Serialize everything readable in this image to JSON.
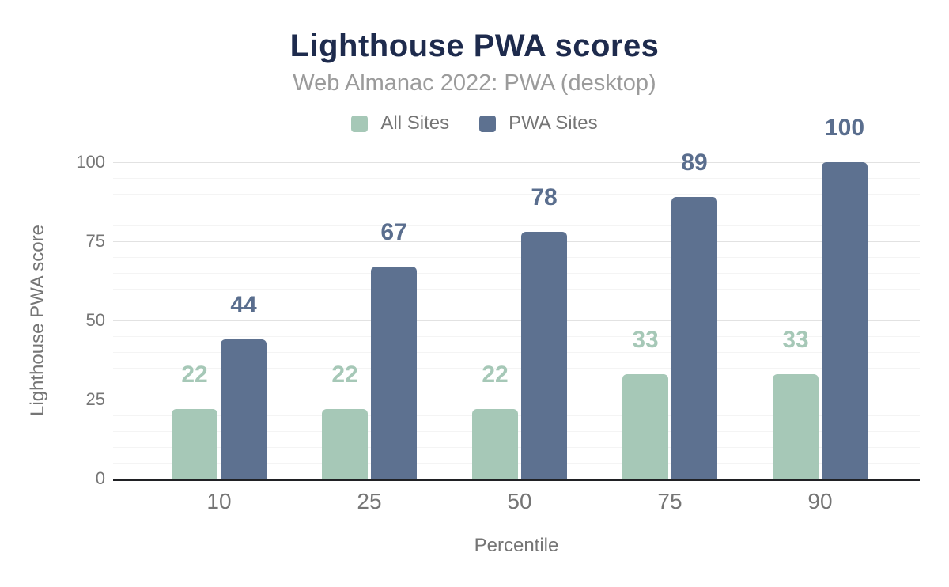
{
  "header": {
    "title": "Lighthouse PWA scores",
    "subtitle": "Web Almanac 2022: PWA (desktop)"
  },
  "legend": [
    {
      "label": "All Sites",
      "color": "#a6c8b7"
    },
    {
      "label": "PWA Sites",
      "color": "#5d7190"
    }
  ],
  "chart_data": {
    "type": "bar",
    "title": "Lighthouse PWA scores",
    "subtitle": "Web Almanac 2022: PWA (desktop)",
    "categories": [
      "10",
      "25",
      "50",
      "75",
      "90"
    ],
    "series": [
      {
        "name": "All Sites",
        "color": "#a6c8b7",
        "label_color": "#a6c8b7",
        "values": [
          22,
          22,
          22,
          33,
          33
        ]
      },
      {
        "name": "PWA Sites",
        "color": "#5d7190",
        "label_color": "#5a6e8e",
        "values": [
          44,
          67,
          78,
          89,
          100
        ]
      }
    ],
    "xlabel": "Percentile",
    "ylabel": "Lighthouse PWA score",
    "ylim": [
      0,
      100
    ],
    "yticks": [
      0,
      25,
      50,
      75,
      100
    ],
    "minor_grid_step": 5,
    "major_grid_step": 25,
    "grid": true,
    "legend_position": "top",
    "value_labels": true,
    "colors": {
      "title": "#1e2b4d",
      "subtitle": "#9b9b9b",
      "axis_text": "#757575",
      "axis_line": "#202124",
      "major_grid": "#e2e2e2",
      "minor_grid": "#f4f4f4"
    }
  }
}
